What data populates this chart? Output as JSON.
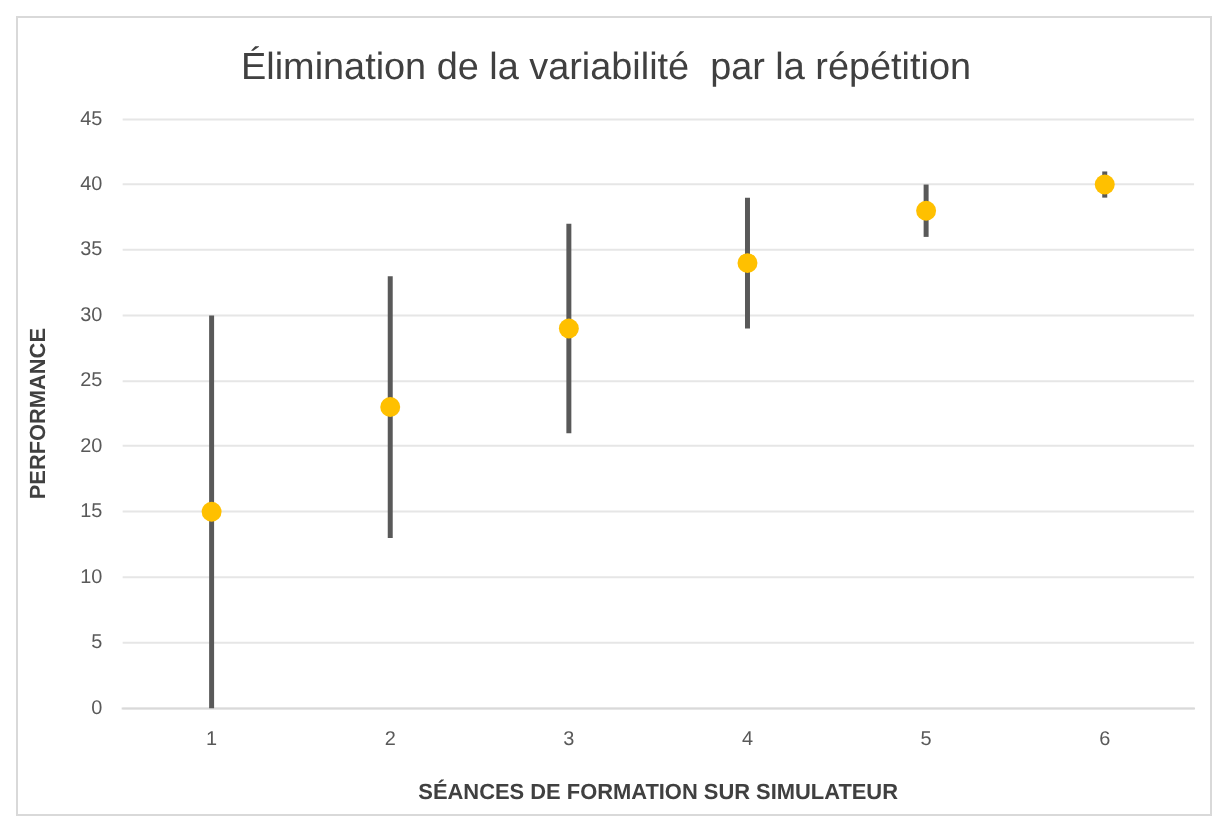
{
  "chart_data": {
    "type": "scatter",
    "title": "Élimination de la variabilité  par la répétition",
    "xlabel": "SÉANCES DE FORMATION SUR SIMULATEUR",
    "ylabel": "PERFORMANCE",
    "categories": [
      "1",
      "2",
      "3",
      "4",
      "5",
      "6"
    ],
    "values": [
      15,
      23,
      29,
      34,
      38,
      40
    ],
    "errors": [
      [
        0,
        30
      ],
      [
        13,
        33
      ],
      [
        21,
        37
      ],
      [
        29,
        39
      ],
      [
        36,
        40
      ],
      [
        39,
        41
      ]
    ],
    "color": "#ffc000",
    "ylim": [
      0,
      45
    ],
    "yticks": [
      0,
      5,
      10,
      15,
      20,
      25,
      30,
      35,
      40,
      45
    ],
    "grid": "y",
    "marker": "circle",
    "legend": false
  }
}
